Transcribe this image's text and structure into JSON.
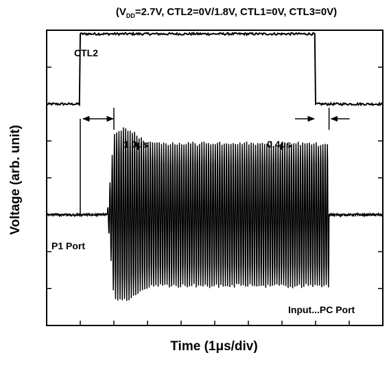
{
  "chart_data": {
    "type": "line",
    "title_prefix": "(V",
    "title_subscript": "DD",
    "title_suffix": "=2.7V, CTL2=0V/1.8V, CTL1=0V, CTL3=0V)",
    "xlabel": "Time  (1μs/div)",
    "ylabel": "Voltage  (arb. unit)",
    "x_unit": "μs",
    "xlim": [
      0,
      10
    ],
    "ylim": [
      0,
      8
    ],
    "grid": false,
    "series": [
      {
        "name": "CTL2",
        "kind": "step",
        "low": 6.0,
        "high": 7.9,
        "rise_at": 1.0,
        "fall_at": 8.0,
        "color": "#000000"
      },
      {
        "name": "P1 Port",
        "kind": "burst",
        "baseline": 3.0,
        "on_at": 1.8,
        "settled_at": 2.0,
        "off_at": 8.4,
        "amplitude_max": 2.4,
        "cycles_per_div": 15,
        "color": "#000000"
      }
    ],
    "annotations": [
      {
        "text": "CTL2",
        "kind": "label"
      },
      {
        "text": "P1 Port",
        "kind": "label"
      },
      {
        "text": "Input...PC Port",
        "kind": "label"
      },
      {
        "text": "1.0μs",
        "kind": "interval",
        "from": 1.0,
        "to": 2.0
      },
      {
        "text": "0.4μs",
        "kind": "interval",
        "from": 8.0,
        "to": 8.4
      }
    ]
  }
}
